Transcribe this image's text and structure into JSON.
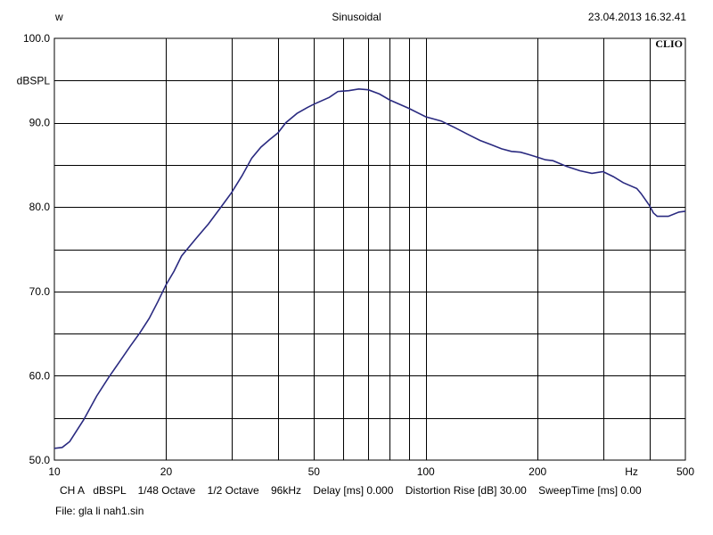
{
  "header": {
    "left": "w",
    "center": "Sinusoidal",
    "right": "23.04.2013 16.32.41"
  },
  "brand": "CLIO",
  "footer": {
    "settings": "CH A   dBSPL    1/48 Octave    1/2 Octave    96kHz    Delay [ms] 0.000    Distortion Rise [dB] 30.00    SweepTime [ms] 0.00",
    "file": "File: gla li nah1.sin"
  },
  "colors": {
    "trace": "#2a2a80",
    "grid": "#000000",
    "background": "#ffffff"
  },
  "chart_data": {
    "type": "line",
    "title": "Sinusoidal",
    "xlabel": "Hz",
    "ylabel": "dBSPL",
    "x_scale": "log",
    "xlim": [
      10,
      500
    ],
    "ylim": [
      50,
      100
    ],
    "grid": true,
    "x_ticks": [
      {
        "value": 10,
        "label": "10"
      },
      {
        "value": 20,
        "label": "20"
      },
      {
        "value": 50,
        "label": "50"
      },
      {
        "value": 100,
        "label": "100"
      },
      {
        "value": 200,
        "label": "200"
      },
      {
        "value": 500,
        "label": "500"
      }
    ],
    "x_unit_label": "Hz",
    "y_ticks": [
      {
        "value": 100,
        "label": "100.0"
      },
      {
        "value": 90,
        "label": "90.0"
      },
      {
        "value": 80,
        "label": "80.0"
      },
      {
        "value": 70,
        "label": "70.0"
      },
      {
        "value": 60,
        "label": "60.0"
      },
      {
        "value": 50,
        "label": "50.0"
      }
    ],
    "x_gridlines": [
      20,
      30,
      40,
      50,
      60,
      70,
      80,
      90,
      100,
      200,
      300,
      400
    ],
    "y_gridlines": [
      55,
      60,
      65,
      70,
      75,
      80,
      85,
      90,
      95
    ],
    "series": [
      {
        "x": [
          10,
          10.5,
          11,
          12,
          13,
          14,
          15,
          16,
          17,
          18,
          19,
          20,
          21,
          22,
          24,
          26,
          28,
          30,
          32,
          34,
          36,
          38,
          40,
          42,
          45,
          48,
          50,
          55,
          58,
          62,
          66,
          70,
          75,
          80,
          90,
          100,
          110,
          120,
          130,
          140,
          150,
          160,
          170,
          180,
          190,
          200,
          210,
          220,
          240,
          260,
          280,
          300,
          320,
          340,
          370,
          380,
          400,
          410,
          420,
          450,
          480,
          500
        ],
        "y": [
          51.4,
          51.5,
          52.2,
          54.8,
          57.6,
          59.8,
          61.7,
          63.5,
          65.1,
          66.8,
          68.8,
          70.8,
          72.4,
          74.2,
          76.2,
          78.0,
          79.9,
          81.7,
          83.7,
          85.8,
          87.1,
          88.0,
          88.8,
          90.0,
          91.1,
          91.8,
          92.2,
          93.0,
          93.7,
          93.8,
          94.0,
          93.9,
          93.4,
          92.7,
          91.7,
          90.7,
          90.2,
          89.4,
          88.6,
          87.9,
          87.4,
          86.9,
          86.6,
          86.5,
          86.2,
          85.9,
          85.6,
          85.5,
          84.8,
          84.3,
          84.0,
          84.2,
          83.6,
          82.9,
          82.2,
          81.6,
          80.2,
          79.3,
          78.9,
          78.9,
          79.4,
          79.5
        ]
      }
    ]
  }
}
